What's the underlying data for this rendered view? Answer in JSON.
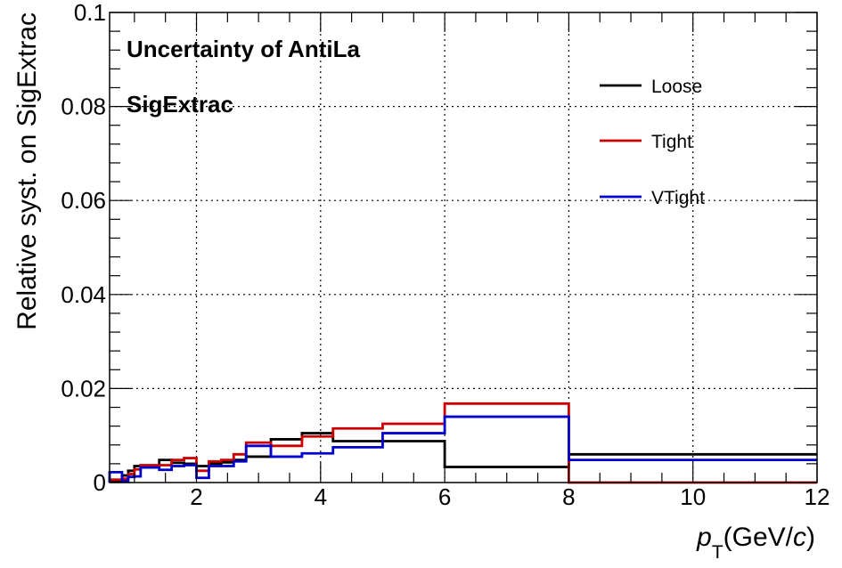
{
  "chart_data": {
    "type": "line",
    "title": "",
    "xlabel_main": "p",
    "xlabel_sub": "T",
    "xlabel_unit_open": "(GeV/",
    "xlabel_unit_var": "c",
    "xlabel_unit_close": ")",
    "ylabel": "Relative syst. on SigExtrac",
    "xlim": [
      0.6,
      12
    ],
    "ylim": [
      0,
      0.1
    ],
    "xticks": [
      2,
      4,
      6,
      8,
      10,
      12
    ],
    "yticks": [
      0,
      0.02,
      0.04,
      0.06,
      0.08,
      0.1
    ],
    "xtick_labels": [
      "2",
      "4",
      "6",
      "8",
      "10",
      "12"
    ],
    "ytick_labels": [
      "0",
      "0.02",
      "0.04",
      "0.06",
      "0.08",
      "0.1"
    ],
    "grid": true,
    "legend_position": "top-right",
    "annotations": [
      "Uncertainty of AntiLa",
      "SigExtrac"
    ],
    "bin_edges": [
      0.6,
      0.8,
      0.9,
      1.0,
      1.1,
      1.4,
      1.6,
      1.8,
      2.0,
      2.2,
      2.4,
      2.6,
      2.8,
      3.2,
      3.7,
      4.2,
      5.0,
      6.0,
      8.0,
      12.0
    ],
    "series": [
      {
        "name": "Loose",
        "color": "#000000",
        "values": [
          0.0002,
          0.0015,
          0.0025,
          0.0035,
          0.0032,
          0.0048,
          0.0042,
          0.004,
          0.0035,
          0.004,
          0.0043,
          0.0048,
          0.0055,
          0.0092,
          0.0105,
          0.0088,
          0.0088,
          0.0033,
          0.006
        ]
      },
      {
        "name": "Tight",
        "color": "#cc0000",
        "values": [
          0.0006,
          0.0008,
          0.0018,
          0.0028,
          0.0037,
          0.0037,
          0.0048,
          0.0052,
          0.0025,
          0.0045,
          0.0048,
          0.006,
          0.0085,
          0.0078,
          0.0098,
          0.0115,
          0.0125,
          0.0168,
          0.0
        ]
      },
      {
        "name": "VTight",
        "color": "#0000cc",
        "values": [
          0.0022,
          0.0003,
          0.0012,
          0.0013,
          0.0032,
          0.0027,
          0.0035,
          0.0037,
          0.001,
          0.0035,
          0.0035,
          0.0045,
          0.0078,
          0.0055,
          0.0062,
          0.0075,
          0.0105,
          0.014,
          0.0048
        ]
      }
    ]
  }
}
